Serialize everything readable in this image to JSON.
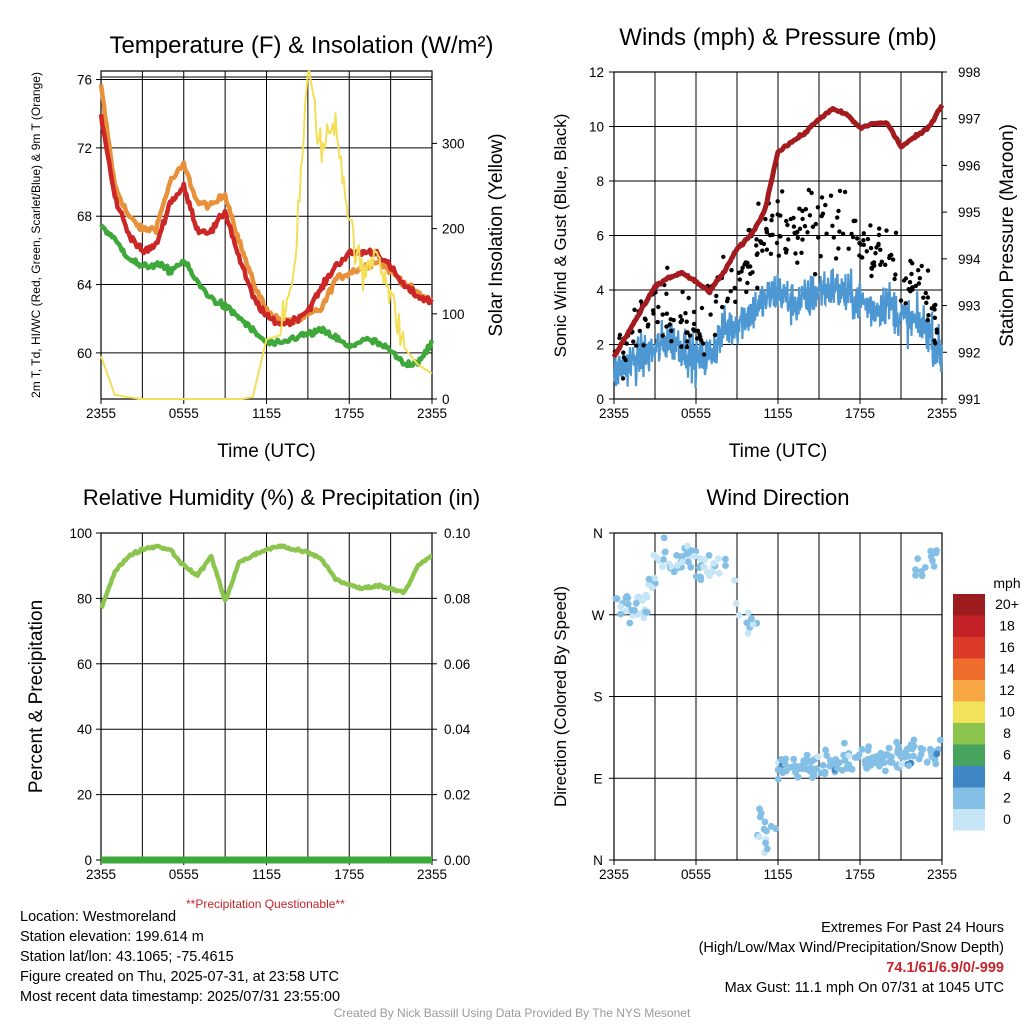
{
  "chart_data": [
    {
      "type": "line",
      "title": "Temperature (F) & Insolation (W/m²)",
      "xlabel": "Time (UTC)",
      "ylabel": "2m T, Td, HI/WC (Red, Green, Scarlet/Blue) & 9m T (Orange)",
      "y2label": "Solar Insolation (Yellow)",
      "x_ticks": [
        "2355",
        "0555",
        "1155",
        "1755",
        "2355"
      ],
      "y_ticks": [
        60,
        64,
        68,
        72,
        76
      ],
      "y2_ticks": [
        0,
        100,
        200,
        300
      ],
      "ylim": [
        57.3,
        76.5
      ],
      "y2lim": [
        0,
        385
      ],
      "x_hours": [
        0,
        1,
        2,
        3,
        4,
        5,
        6,
        7,
        8,
        9,
        10,
        11,
        12,
        13,
        14,
        15,
        16,
        17,
        18,
        19,
        20,
        21,
        22,
        23,
        24
      ],
      "series": [
        {
          "color": "#e8913a",
          "values": [
            75.6,
            69.8,
            68.0,
            67.2,
            67.3,
            70.0,
            71.0,
            68.8,
            68.6,
            69.3,
            66.6,
            64.2,
            62.5,
            61.9,
            61.8,
            62.2,
            62.6,
            64.3,
            64.7,
            65.0,
            65.4,
            64.8,
            64.1,
            63.4,
            63.0
          ]
        },
        {
          "color": "#cc2727",
          "values": [
            73.9,
            69.1,
            67.0,
            65.9,
            66.3,
            68.8,
            69.7,
            67.2,
            67.1,
            68.3,
            65.6,
            63.3,
            62.1,
            61.7,
            61.9,
            62.5,
            63.8,
            65.1,
            65.8,
            65.9,
            65.9,
            65.0,
            63.9,
            63.3,
            63.0
          ]
        },
        {
          "color": "#3ea83a",
          "values": [
            67.5,
            66.6,
            65.6,
            65.0,
            65.2,
            64.8,
            65.4,
            64.1,
            63.2,
            62.7,
            62.1,
            61.3,
            60.6,
            60.5,
            60.9,
            61.1,
            61.3,
            60.9,
            60.3,
            60.8,
            60.6,
            60.1,
            59.3,
            59.5,
            60.6
          ]
        },
        {
          "color": "#f3df58",
          "values": [
            50,
            5,
            2,
            0,
            0,
            0,
            0,
            0,
            0,
            0,
            0,
            2,
            70,
            75,
            150,
            385,
            290,
            330,
            210,
            140,
            180,
            120,
            60,
            40,
            30
          ]
        }
      ]
    },
    {
      "type": "line",
      "title": "Winds (mph) & Pressure (mb)",
      "xlabel": "Time (UTC)",
      "ylabel": "Sonic Wind & Gust (Blue, Black)",
      "y2label": "Station Pressure (Maroon)",
      "x_ticks": [
        "2355",
        "0555",
        "1155",
        "1755",
        "2355"
      ],
      "y_ticks": [
        0,
        2,
        4,
        6,
        8,
        10,
        12
      ],
      "y2_ticks": [
        991,
        992,
        993,
        994,
        995,
        996,
        997,
        998
      ],
      "ylim": [
        0,
        12
      ],
      "y2lim": [
        991,
        998
      ],
      "x_hours": [
        0,
        1,
        2,
        3,
        4,
        5,
        6,
        7,
        8,
        9,
        10,
        11,
        12,
        13,
        14,
        15,
        16,
        17,
        18,
        19,
        20,
        21,
        22,
        23,
        24
      ],
      "pressure": [
        991.9,
        992.4,
        992.9,
        993.4,
        993.6,
        993.7,
        993.5,
        993.3,
        993.7,
        994.2,
        994.5,
        995.0,
        996.3,
        996.5,
        996.7,
        997.0,
        997.2,
        997.1,
        996.8,
        996.9,
        996.9,
        996.4,
        996.6,
        996.8,
        997.3
      ],
      "wind_mean": [
        1.0,
        1.3,
        1.5,
        1.8,
        2.2,
        2.0,
        1.4,
        1.6,
        2.5,
        2.8,
        3.2,
        3.6,
        4.0,
        3.5,
        3.6,
        4.0,
        4.1,
        3.8,
        3.6,
        3.3,
        3.6,
        3.0,
        2.8,
        2.6,
        1.5
      ],
      "gust_mean": [
        1.8,
        2.2,
        2.8,
        3.3,
        3.6,
        3.2,
        2.4,
        2.8,
        4.2,
        4.6,
        5.2,
        6.0,
        6.5,
        6.0,
        6.3,
        6.6,
        6.8,
        6.2,
        5.8,
        5.3,
        5.6,
        4.8,
        4.5,
        4.0,
        2.4
      ]
    },
    {
      "type": "line",
      "title": "Relative Humidity (%) & Precipitation (in)",
      "xlabel": "",
      "ylabel": "Percent & Precipitation",
      "y_ticks": [
        0,
        20,
        40,
        60,
        80,
        100
      ],
      "y2_ticks": [
        "0.00",
        "0.02",
        "0.04",
        "0.06",
        "0.08",
        "0.10"
      ],
      "x_ticks": [
        "2355",
        "0555",
        "1155",
        "1755",
        "2355"
      ],
      "ylim": [
        0,
        100
      ],
      "x_hours": [
        0,
        1,
        2,
        3,
        4,
        5,
        6,
        7,
        8,
        9,
        10,
        11,
        12,
        13,
        14,
        15,
        16,
        17,
        18,
        19,
        20,
        21,
        22,
        23,
        24
      ],
      "rh": [
        77,
        88,
        93,
        95,
        96,
        95,
        90,
        87,
        93,
        79,
        91,
        93,
        95,
        96,
        95,
        94,
        92,
        86,
        84,
        83,
        84,
        83,
        82,
        90,
        93
      ],
      "precip": [
        0,
        0,
        0,
        0,
        0,
        0,
        0,
        0,
        0,
        0,
        0,
        0,
        0,
        0,
        0,
        0,
        0,
        0,
        0,
        0,
        0,
        0,
        0,
        0,
        0
      ]
    },
    {
      "type": "scatter",
      "title": "Wind Direction",
      "xlabel": "",
      "ylabel": "Direction (Colored By Speed)",
      "x_ticks": [
        "2355",
        "0555",
        "1155",
        "1755",
        "2355"
      ],
      "y_ticks": [
        "N",
        "E",
        "S",
        "W",
        "N"
      ],
      "ylim": [
        0,
        360
      ],
      "legend_title": "mph",
      "legend_labels": [
        "0",
        "2",
        "4",
        "6",
        "8",
        "10",
        "12",
        "14",
        "16",
        "18",
        "20+"
      ],
      "legend_colors": [
        "#c6e6f7",
        "#84bfe6",
        "#3f87c5",
        "#46a45e",
        "#8cc54d",
        "#f2e25a",
        "#f7a844",
        "#ee6d2d",
        "#dc3b2a",
        "#c42126",
        "#9b1b1f"
      ],
      "legend_placement": "right",
      "segments": [
        {
          "h0": 0.0,
          "h1": 2.5,
          "d0": 270,
          "d1": 285,
          "spread": 35,
          "n": 30
        },
        {
          "h0": 2.5,
          "h1": 4.0,
          "d0": 300,
          "d1": 350,
          "spread": 45,
          "n": 14
        },
        {
          "h0": 4.0,
          "h1": 6.0,
          "d0": 320,
          "d1": 340,
          "spread": 25,
          "n": 24
        },
        {
          "h0": 6.0,
          "h1": 8.5,
          "d0": 320,
          "d1": 330,
          "spread": 30,
          "n": 20
        },
        {
          "h0": 8.5,
          "h1": 10.5,
          "d0": 300,
          "d1": 250,
          "spread": 45,
          "n": 10
        },
        {
          "h0": 10.5,
          "h1": 12.0,
          "d0": 40,
          "d1": 30,
          "spread": 40,
          "n": 14
        },
        {
          "h0": 12.0,
          "h1": 24.0,
          "d0": 100,
          "d1": 120,
          "spread": 25,
          "n": 150
        },
        {
          "h0": 22.0,
          "h1": 24.0,
          "d0": 320,
          "d1": 340,
          "spread": 30,
          "n": 12
        }
      ]
    }
  ],
  "info": {
    "location": "Location: Westmoreland",
    "elevation": "Station elevation: 199.614 m",
    "latlon": "Station lat/lon: 43.1065; -75.4615",
    "created": "Figure created on Thu, 2025-07-31, at 23:58 UTC",
    "recent": "Most recent data timestamp: 2025/07/31 23:55:00"
  },
  "extremes": {
    "title": "Extremes For Past 24 Hours",
    "subtitle": "(High/Low/Max Wind/Precipitation/Snow Depth)",
    "values": "74.1/61/6.9/0/-999",
    "gust": "Max Gust: 11.1 mph On 07/31 at 1045 UTC"
  },
  "precip_note": "**Precipitation Questionable**",
  "credit": "Created By Nick Bassill Using Data Provided By The NYS Mesonet"
}
